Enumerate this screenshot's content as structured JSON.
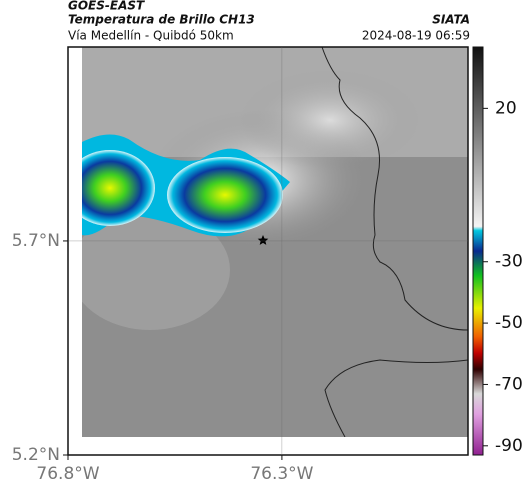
{
  "header": {
    "title": "GOES-EAST",
    "subtitle": "Temperatura de Brillo CH13",
    "source": "SIATA",
    "region": "Vía Medellín - Quibdó 50km",
    "datetime": "2024-08-19 06:59"
  },
  "map": {
    "xlim": [
      -76.8,
      -75.865
    ],
    "ylim": [
      5.2,
      6.153
    ],
    "xticks": [
      {
        "value": -76.8,
        "label": "76.8°W"
      },
      {
        "value": -76.3,
        "label": "76.3°W"
      }
    ],
    "yticks": [
      {
        "value": 5.7,
        "label": "5.7°N"
      },
      {
        "value": 5.2,
        "label": "5.2°N"
      }
    ],
    "grid": true
  },
  "colorbar": {
    "lim": [
      -93,
      40
    ],
    "ticks": [
      20,
      -30,
      -50,
      -70,
      -90
    ]
  }
}
